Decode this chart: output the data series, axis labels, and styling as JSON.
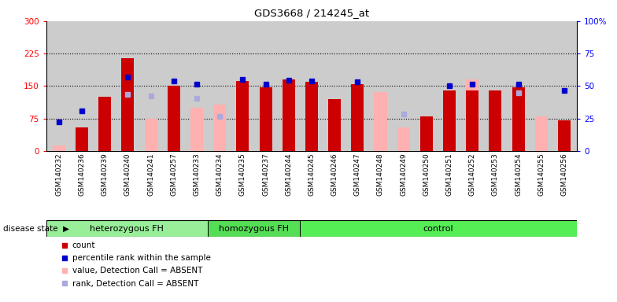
{
  "title": "GDS3668 / 214245_at",
  "samples": [
    "GSM140232",
    "GSM140236",
    "GSM140239",
    "GSM140240",
    "GSM140241",
    "GSM140257",
    "GSM140233",
    "GSM140234",
    "GSM140235",
    "GSM140237",
    "GSM140244",
    "GSM140245",
    "GSM140246",
    "GSM140247",
    "GSM140248",
    "GSM140249",
    "GSM140250",
    "GSM140251",
    "GSM140252",
    "GSM140253",
    "GSM140254",
    "GSM140255",
    "GSM140256"
  ],
  "count": [
    null,
    55,
    125,
    215,
    null,
    150,
    null,
    null,
    162,
    147,
    165,
    160,
    120,
    155,
    null,
    null,
    80,
    140,
    140,
    140,
    147,
    null,
    70
  ],
  "rank_blue": [
    68,
    93,
    null,
    170,
    null,
    162,
    155,
    null,
    165,
    155,
    163,
    162,
    null,
    160,
    null,
    null,
    null,
    150,
    155,
    null,
    155,
    null,
    140
  ],
  "value_absent": [
    12,
    null,
    null,
    null,
    75,
    null,
    100,
    108,
    null,
    null,
    null,
    null,
    null,
    null,
    137,
    55,
    null,
    null,
    165,
    null,
    null,
    80,
    null
  ],
  "rank_absent": [
    null,
    null,
    null,
    130,
    128,
    null,
    122,
    80,
    null,
    null,
    null,
    null,
    null,
    null,
    null,
    85,
    null,
    null,
    null,
    null,
    135,
    null,
    null
  ],
  "groups": [
    {
      "label": "heterozygous FH",
      "start": 0,
      "end": 7,
      "color": "#99ee99"
    },
    {
      "label": "homozygous FH",
      "start": 7,
      "end": 11,
      "color": "#55dd55"
    },
    {
      "label": "control",
      "start": 11,
      "end": 23,
      "color": "#55ee55"
    }
  ],
  "ylim_left": [
    0,
    300
  ],
  "ylim_right": [
    0,
    100
  ],
  "yticks_left": [
    0,
    75,
    150,
    225,
    300
  ],
  "yticks_right": [
    0,
    25,
    50,
    75,
    100
  ],
  "bar_color": "#cc0000",
  "absent_bar_color": "#ffb0b0",
  "rank_color": "#0000cc",
  "absent_rank_color": "#aaaadd",
  "bg_color": "#cccccc"
}
